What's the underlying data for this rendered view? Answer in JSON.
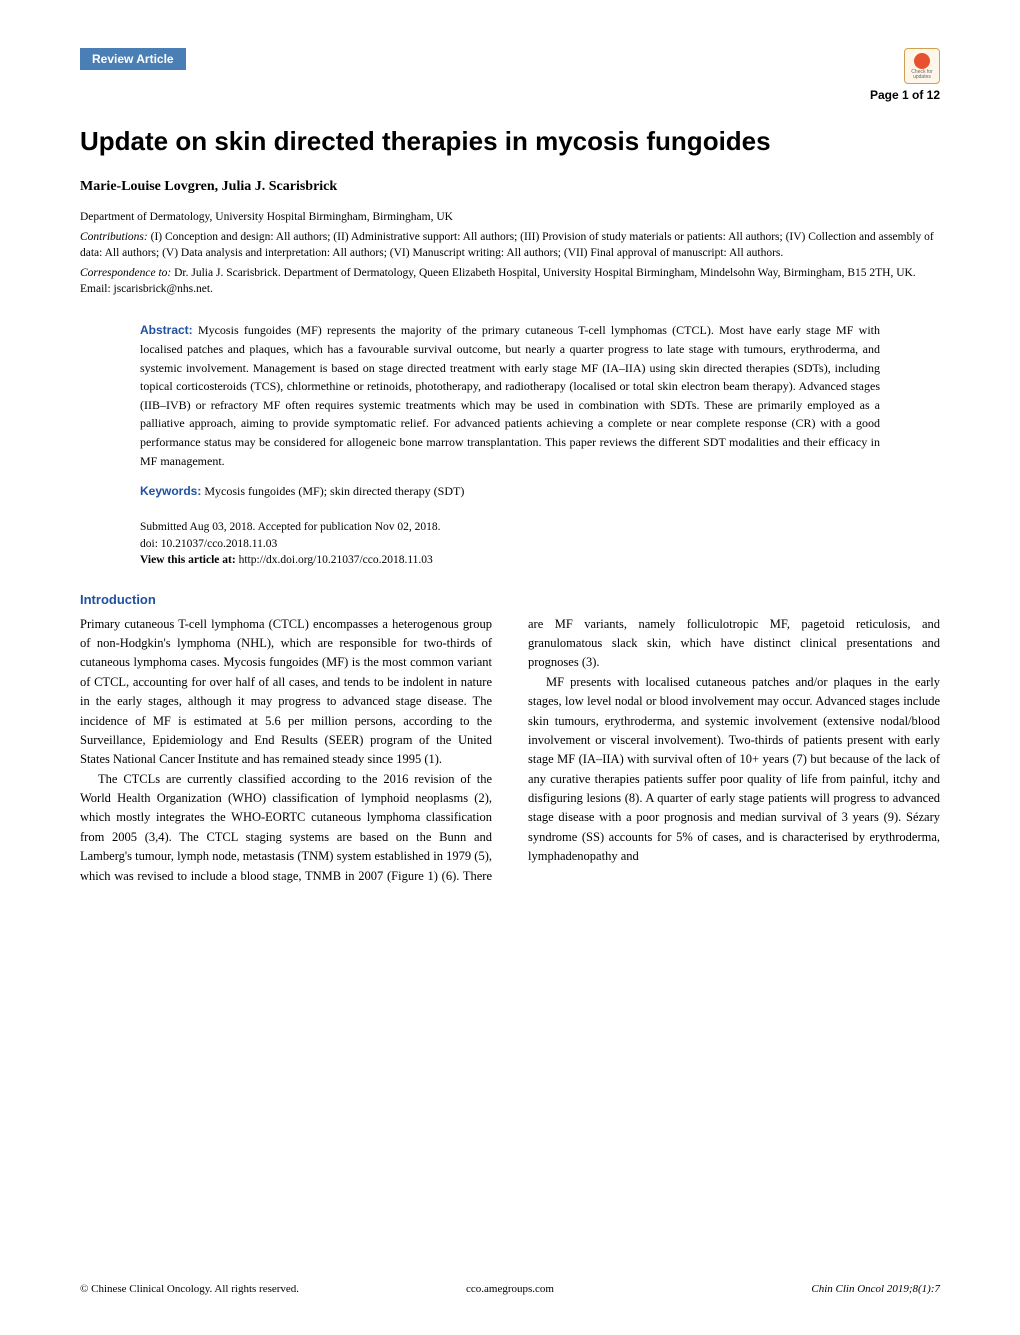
{
  "header": {
    "badge": "Review Article",
    "page_info": "Page 1 of 12",
    "check_updates": "Check for updates"
  },
  "title": "Update on skin directed therapies in mycosis fungoides",
  "authors": "Marie-Louise Lovgren, Julia J. Scarisbrick",
  "affiliation": "Department of Dermatology, University Hospital Birmingham, Birmingham, UK",
  "contributions_label": "Contributions:",
  "contributions": " (I) Conception and design: All authors; (II) Administrative support: All authors; (III) Provision of study materials or patients: All authors; (IV) Collection and assembly of data: All authors; (V) Data analysis and interpretation: All authors; (VI) Manuscript writing: All authors; (VII) Final approval of manuscript: All authors.",
  "correspondence_label": "Correspondence to:",
  "correspondence": " Dr. Julia J. Scarisbrick. Department of Dermatology, Queen Elizabeth Hospital, University Hospital Birmingham, Mindelsohn Way, Birmingham, B15 2TH, UK. Email: jscarisbrick@nhs.net.",
  "abstract_label": "Abstract:",
  "abstract": " Mycosis fungoides (MF) represents the majority of the primary cutaneous T-cell lymphomas (CTCL). Most have early stage MF with localised patches and plaques, which has a favourable survival outcome, but nearly a quarter progress to late stage with tumours, erythroderma, and systemic involvement. Management is based on stage directed treatment with early stage MF (IA–IIA) using skin directed therapies (SDTs), including topical corticosteroids (TCS), chlormethine or retinoids, phototherapy, and radiotherapy (localised or total skin electron beam therapy). Advanced stages (IIB–IVB) or refractory MF often requires systemic treatments which may be used in combination with SDTs. These are primarily employed as a palliative approach, aiming to provide symptomatic relief. For advanced patients achieving a complete or near complete response (CR) with a good performance status may be considered for allogeneic bone marrow transplantation. This paper reviews the different SDT modalities and their efficacy in MF management.",
  "keywords_label": "Keywords:",
  "keywords": " Mycosis fungoides (MF); skin directed therapy (SDT)",
  "submitted": "Submitted Aug 03, 2018. Accepted for publication Nov 02, 2018.",
  "doi": "doi: 10.21037/cco.2018.11.03",
  "view_label": "View this article at:",
  "view_url": " http://dx.doi.org/10.21037/cco.2018.11.03",
  "intro_heading": "Introduction",
  "intro_p1": "Primary cutaneous T-cell lymphoma (CTCL) encompasses a heterogenous group of non-Hodgkin's lymphoma (NHL), which are responsible for two-thirds of cutaneous lymphoma cases. Mycosis fungoides (MF) is the most common variant of CTCL, accounting for over half of all cases, and tends to be indolent in nature in the early stages, although it may progress to advanced stage disease. The incidence of MF is estimated at 5.6 per million persons, according to the Surveillance, Epidemiology and End Results (SEER) program of the United States National Cancer Institute and has remained steady since 1995 (1).",
  "intro_p2": "The CTCLs are currently classified according to the 2016 revision of the World Health Organization (WHO) classification of lymphoid neoplasms (2), which mostly integrates the WHO-EORTC cutaneous lymphoma classification from 2005 (3,4). The CTCL staging systems are based on the Bunn and Lamberg's tumour, lymph node, metastasis (TNM) system established in 1979 (5), which was revised to include a blood stage, TNMB in 2007 (Figure 1) (6). There are MF variants, namely folliculotropic MF, pagetoid reticulosis, and granulomatous slack skin, which have distinct clinical presentations and prognoses (3).",
  "intro_p3": "MF presents with localised cutaneous patches and/or plaques in the early stages, low level nodal or blood involvement may occur. Advanced stages include skin tumours, erythroderma, and systemic involvement (extensive nodal/blood involvement or visceral involvement). Two-thirds of patients present with early stage MF (IA–IIA) with survival often of 10+ years (7) but because of the lack of any curative therapies patients suffer poor quality of life from painful, itchy and disfiguring lesions (8). A quarter of early stage patients will progress to advanced stage disease with a poor prognosis and median survival of 3 years (9). Sézary syndrome (SS) accounts for 5% of cases, and is characterised by erythroderma, lymphadenopathy and",
  "footer": {
    "left": "© Chinese Clinical Oncology. All rights reserved.",
    "center": "cco.amegroups.com",
    "right": "Chin Clin Oncol 2019;8(1):7"
  },
  "colors": {
    "badge_bg": "#4a7fb5",
    "heading_blue": "#2050a0",
    "check_border": "#d0a050",
    "check_bg": "#fef6e8",
    "check_circle": "#e85030"
  },
  "typography": {
    "title_fontsize": 26,
    "body_fontsize": 12.5,
    "abstract_fontsize": 12,
    "meta_fontsize": 11.5
  }
}
